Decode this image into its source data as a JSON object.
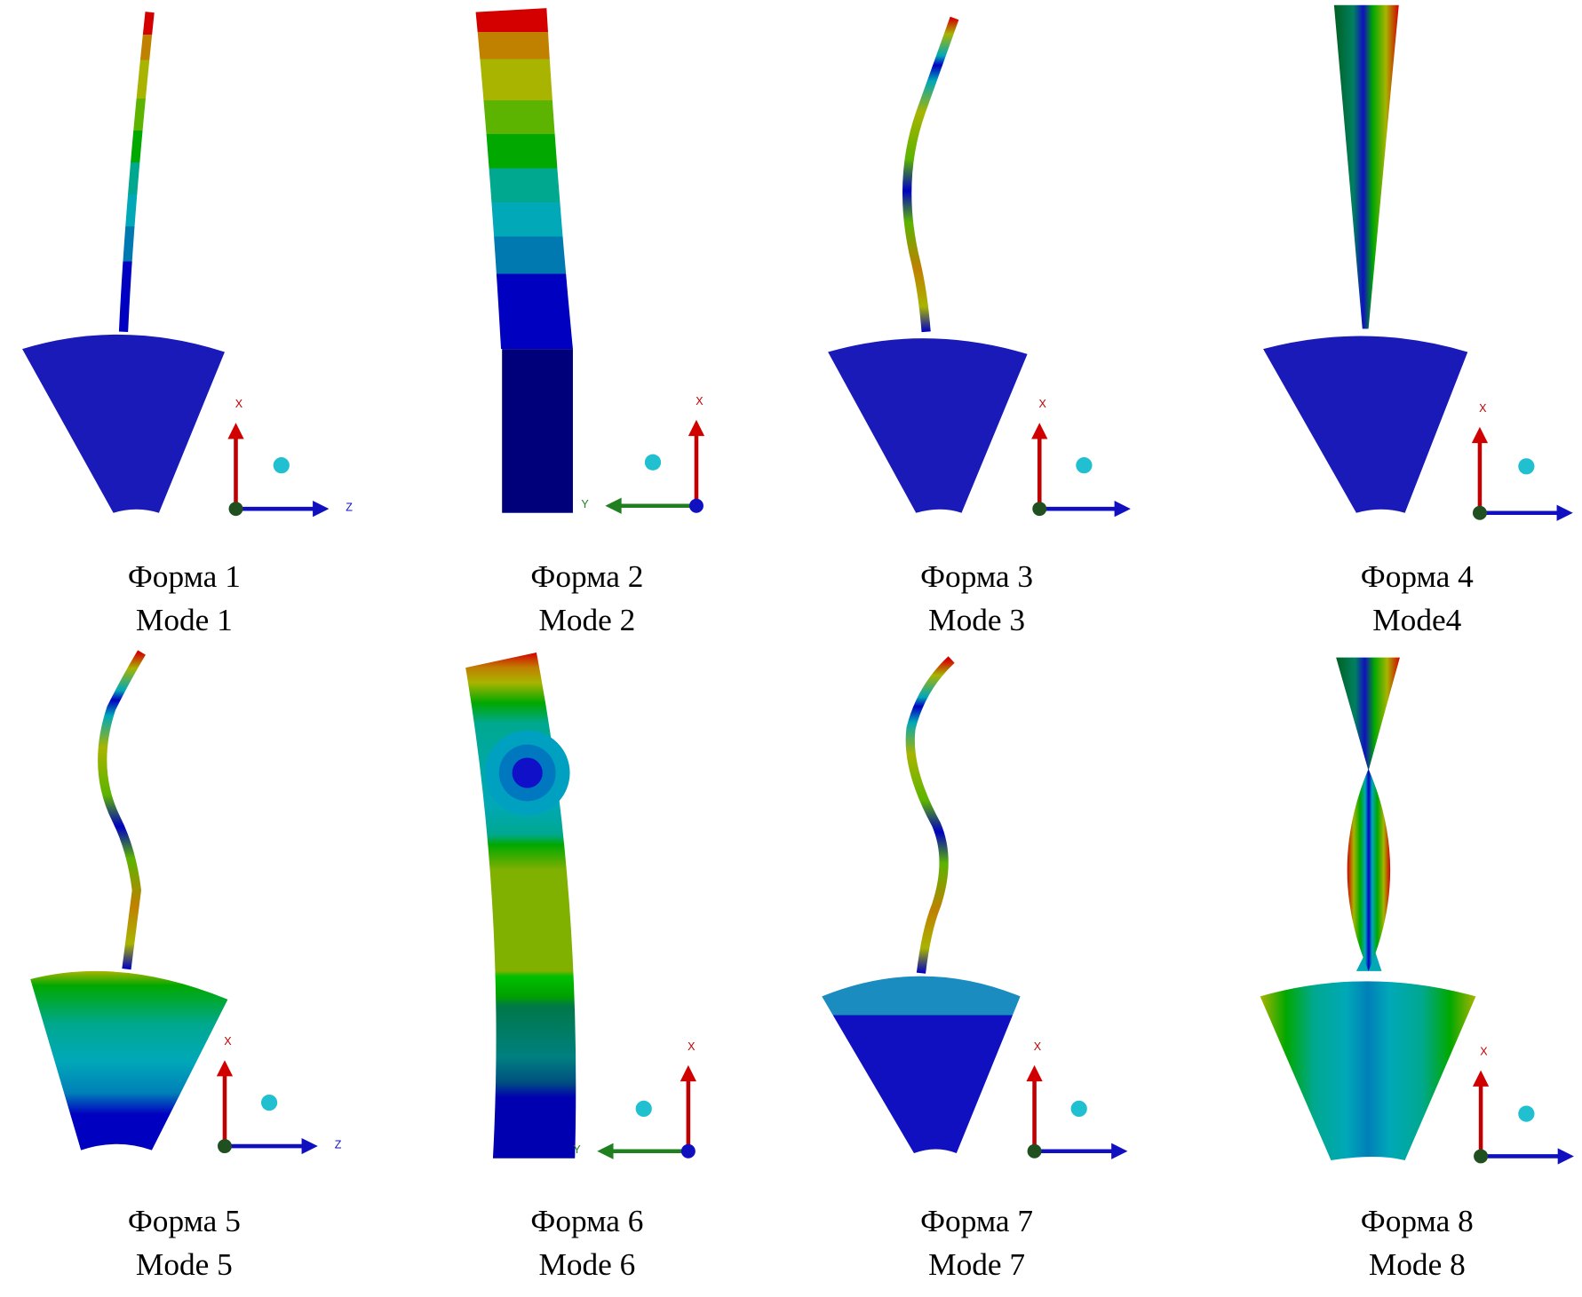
{
  "panels": [
    {
      "caption": "Форма 1",
      "caption_en": "Mode 1",
      "axis_labels": [
        "X",
        "Z"
      ]
    },
    {
      "caption": "Форма 2",
      "caption_en": "Mode 2",
      "axis_labels": [
        "X",
        "Y"
      ]
    },
    {
      "caption": "Форма 3",
      "caption_en": "Mode 3",
      "axis_labels": [
        "X"
      ]
    },
    {
      "caption": "Форма 4",
      "caption_en": "Mode4",
      "axis_labels": [
        "X"
      ]
    },
    {
      "caption": "Форма 5",
      "caption_en": "Mode 5",
      "axis_labels": [
        "X",
        "Z"
      ]
    },
    {
      "caption": "Форма 6",
      "caption_en": "Mode 6",
      "axis_labels": [
        "X",
        "Y"
      ]
    },
    {
      "caption": "Форма 7",
      "caption_en": "Mode 7",
      "axis_labels": [
        "X"
      ]
    },
    {
      "caption": "Форма 8",
      "caption_en": "Mode 8",
      "axis_labels": [
        "X"
      ]
    }
  ]
}
